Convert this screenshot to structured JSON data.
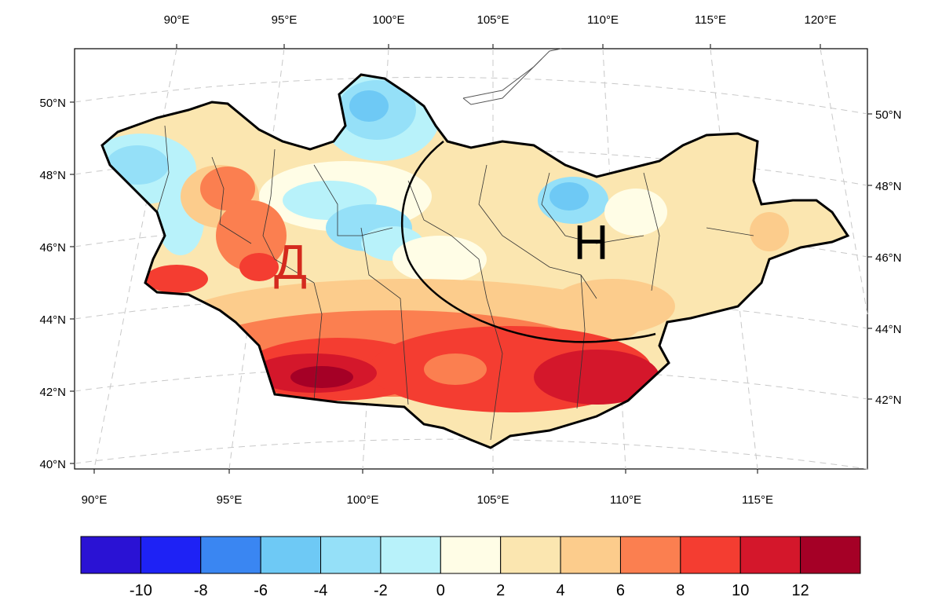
{
  "map": {
    "top_lon_labels": [
      "90°E",
      "95°E",
      "100°E",
      "105°E",
      "110°E",
      "115°E",
      "120°E"
    ],
    "bottom_lon_labels": [
      "90°E",
      "95°E",
      "100°E",
      "105°E",
      "110°E",
      "115°E"
    ],
    "left_lat_labels": [
      "50°N",
      "48°N",
      "46°N",
      "44°N",
      "42°N",
      "40°N"
    ],
    "right_lat_labels": [
      "50°N",
      "48°N",
      "46°N",
      "44°N",
      "42°N"
    ],
    "region_labels": {
      "west": {
        "text": "Д",
        "color": "#d42a1e"
      },
      "east": {
        "text": "Н",
        "color": "#000000"
      }
    }
  },
  "colorbar": {
    "colors": [
      "#2a12d4",
      "#1e22f5",
      "#3a86f2",
      "#6ec9f5",
      "#95e0f8",
      "#b8f2fa",
      "#fffde6",
      "#fbe6b0",
      "#fccc8c",
      "#fb7f50",
      "#f43d31",
      "#d4172b",
      "#a50026"
    ],
    "tick_labels": [
      "-10",
      "-8",
      "-6",
      "-4",
      "-2",
      "0",
      "2",
      "4",
      "6",
      "8",
      "10",
      "12"
    ]
  }
}
